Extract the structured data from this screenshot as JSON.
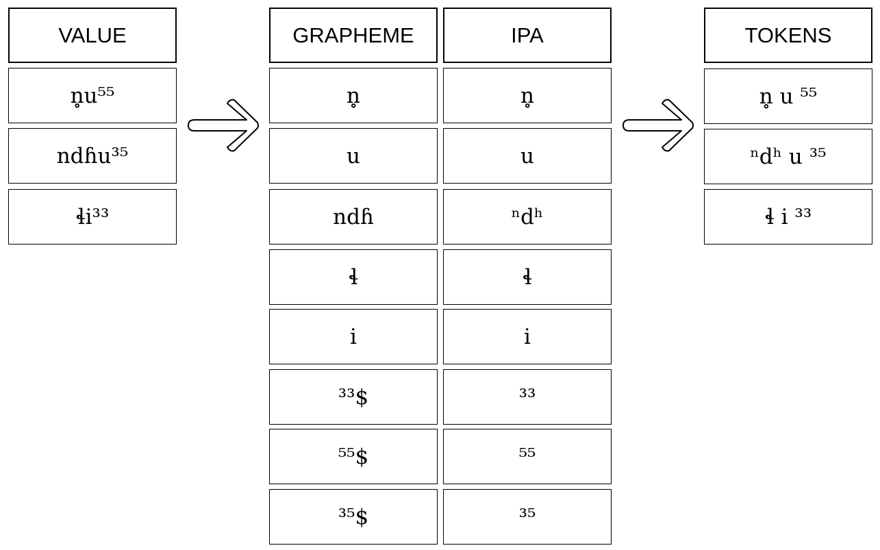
{
  "value": {
    "header": "VALUE",
    "rows": [
      "n̥u⁵⁵",
      "ndɦu³⁵",
      "ɬi³³"
    ]
  },
  "grapheme": {
    "header": "GRAPHEME",
    "rows": [
      "n̥",
      "u",
      "ndɦ",
      "ɬ",
      "i",
      "³³$",
      "⁵⁵$",
      "³⁵$"
    ]
  },
  "ipa": {
    "header": "IPA",
    "rows": [
      "n̥",
      "u",
      "ⁿdʰ",
      "ɬ",
      "i",
      "³³",
      "⁵⁵",
      "³⁵"
    ]
  },
  "tokens": {
    "header": "TOKENS",
    "rows": [
      "n̥ u ⁵⁵",
      "ⁿdʰ u ³⁵",
      "ɬ i ³³"
    ]
  },
  "icons": {
    "arrow_1": "right-arrow-icon",
    "arrow_2": "right-arrow-icon"
  }
}
